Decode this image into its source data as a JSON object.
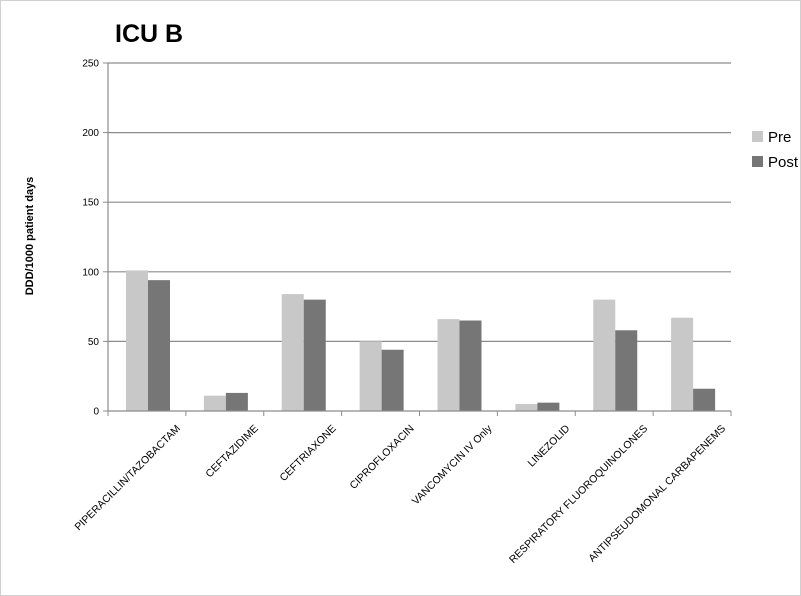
{
  "chart_data": {
    "type": "bar",
    "title": "ICU B",
    "ylabel": "DDD/1000 patient days",
    "xlabel": "",
    "ylim": [
      0,
      250
    ],
    "yticks": [
      0,
      50,
      100,
      150,
      200,
      250
    ],
    "grid": true,
    "legend_position": "right",
    "categories": [
      "PIPERACILLIN/TAZOBACTAM",
      "CEFTAZIDIME",
      "CEFTRIAXONE",
      "CIPROFLOXACIN",
      "VANCOMYCIN IV Only",
      "LINEZOLID",
      "RESPIRATORY FLUOROQUINOLONES",
      "ANTIPSEUDOMONAL CARBAPENEMS"
    ],
    "series": [
      {
        "name": "Pre",
        "color": "#c8c8c8",
        "values": [
          101,
          11,
          84,
          50,
          66,
          5,
          80,
          67
        ]
      },
      {
        "name": "Post",
        "color": "#767676",
        "values": [
          94,
          13,
          80,
          44,
          65,
          6,
          58,
          16
        ]
      }
    ]
  }
}
